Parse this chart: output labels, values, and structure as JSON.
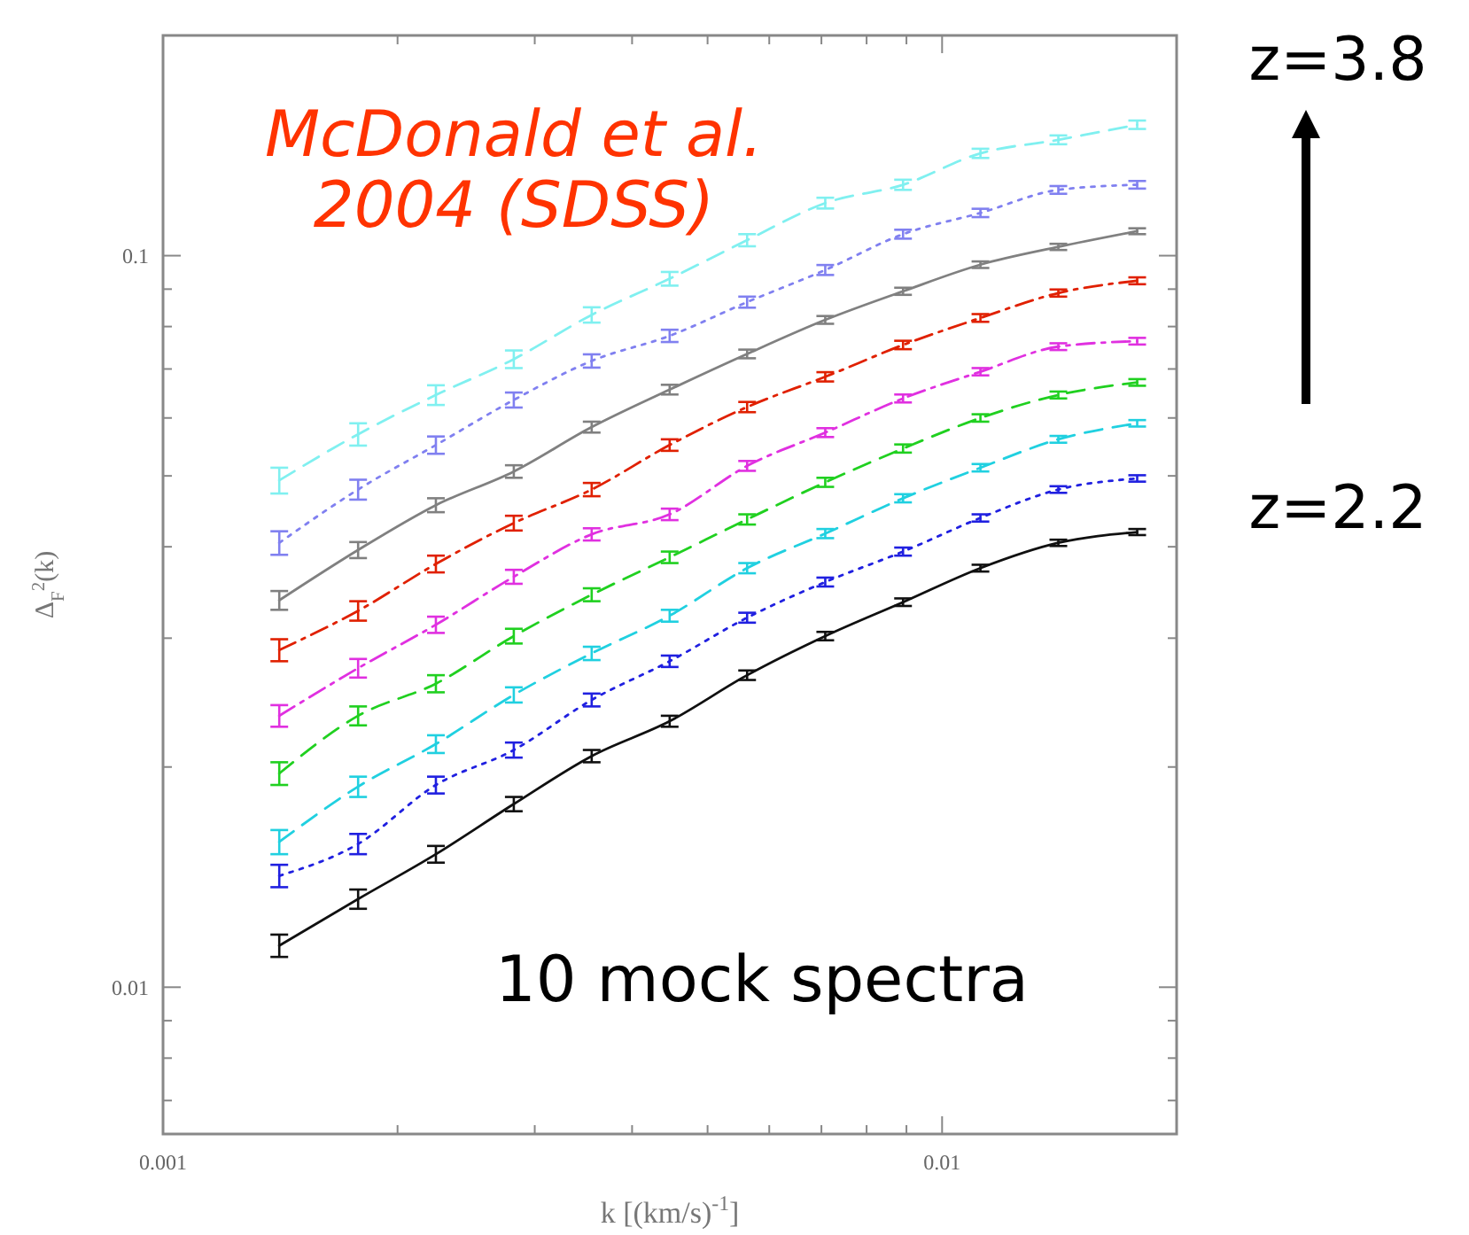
{
  "chart_data": {
    "type": "line",
    "xlabel": "k [(km/s)$^{-1}$]",
    "ylabel": "Δ$_{F}$$^{2}$(k)",
    "log": "xy",
    "grid": false,
    "marker": "none",
    "xlim": [
      0.001,
      0.02
    ],
    "ylim": [
      0.0063,
      0.2
    ],
    "xticks": [
      0.001,
      {
        "value": 0.002,
        "label": null
      },
      {
        "value": 0.003,
        "label": null
      },
      {
        "value": 0.004,
        "label": null
      },
      {
        "value": 0.005,
        "label": null
      },
      {
        "value": 0.006,
        "label": null
      },
      {
        "value": 0.007,
        "label": null
      },
      {
        "value": 0.008,
        "label": null
      },
      {
        "value": 0.009,
        "label": null
      },
      0.01,
      {
        "value": 0.02,
        "label": null
      }
    ],
    "yticks": [
      {
        "value": 0.007,
        "label": null
      },
      {
        "value": 0.008,
        "label": null
      },
      {
        "value": 0.009,
        "label": null
      },
      0.01,
      {
        "value": 0.02,
        "label": null
      },
      {
        "value": 0.03,
        "label": null
      },
      {
        "value": 0.04,
        "label": null
      },
      {
        "value": 0.05,
        "label": null
      },
      {
        "value": 0.06,
        "label": null
      },
      {
        "value": 0.07,
        "label": null
      },
      {
        "value": 0.08,
        "label": null
      },
      {
        "value": 0.09,
        "label": null
      },
      0.1,
      {
        "value": 0.2,
        "label": null
      }
    ],
    "x": [
      0.00141,
      0.00178,
      0.00224,
      0.00282,
      0.00355,
      0.00447,
      0.00562,
      0.00708,
      0.00891,
      0.0112,
      0.0141,
      0.0178
    ],
    "series": [
      {
        "color": "#80f0f0",
        "line_style": "dashed",
        "values": [
          0.0493,
          0.057,
          0.0645,
          0.0722,
          0.083,
          0.093,
          0.105,
          0.118,
          0.125,
          0.138,
          0.144,
          0.151
        ],
        "errors": [
          0.002,
          0.002,
          0.002,
          0.002,
          0.002,
          0.002,
          0.002,
          0.002,
          0.002,
          0.002,
          0.002,
          0.002
        ]
      },
      {
        "color": "#8080f0",
        "line_style": "dotted",
        "values": [
          0.0405,
          0.0479,
          0.0551,
          0.0635,
          0.0718,
          0.0777,
          0.0864,
          0.0956,
          0.107,
          0.1144,
          0.123,
          0.125
        ],
        "errors": [
          0.0015,
          0.0015,
          0.0015,
          0.0015,
          0.0015,
          0.0015,
          0.0015,
          0.0015,
          0.0015,
          0.0015,
          0.0015,
          0.0015
        ]
      },
      {
        "color": "#808080",
        "line_style": "solid",
        "values": [
          0.0338,
          0.0396,
          0.0456,
          0.0507,
          0.0583,
          0.0656,
          0.0734,
          0.0817,
          0.0894,
          0.0972,
          0.1028,
          0.108
        ],
        "errors": [
          0.001,
          0.001,
          0.001,
          0.001,
          0.001,
          0.001,
          0.001,
          0.001,
          0.001,
          0.001,
          0.001,
          0.001
        ]
      },
      {
        "color": "#e02000",
        "line_style": "dashdot",
        "values": [
          0.0289,
          0.0327,
          0.0379,
          0.0431,
          0.0479,
          0.0551,
          0.0621,
          0.0683,
          0.0755,
          0.0822,
          0.0889,
          0.0924
        ],
        "errors": [
          0.001,
          0.001,
          0.001,
          0.001,
          0.001,
          0.001,
          0.001,
          0.001,
          0.001,
          0.001,
          0.001,
          0.001
        ]
      },
      {
        "color": "#e030e0",
        "line_style": "dashdot",
        "values": [
          0.0235,
          0.0273,
          0.0313,
          0.0364,
          0.0416,
          0.0443,
          0.0516,
          0.0573,
          0.0638,
          0.0694,
          0.0751,
          0.0764
        ],
        "errors": [
          0.0008,
          0.0008,
          0.0008,
          0.0008,
          0.0008,
          0.0008,
          0.0008,
          0.0008,
          0.0008,
          0.0008,
          0.0008,
          0.0008
        ]
      },
      {
        "color": "#20d020",
        "line_style": "dashed",
        "values": [
          0.0196,
          0.0235,
          0.026,
          0.0302,
          0.0344,
          0.0387,
          0.0436,
          0.049,
          0.0545,
          0.06,
          0.0645,
          0.0671
        ],
        "errors": [
          0.0007,
          0.0007,
          0.0007,
          0.0007,
          0.0007,
          0.0007,
          0.0007,
          0.0007,
          0.0007,
          0.0007,
          0.0007,
          0.0007
        ]
      },
      {
        "color": "#20d0e0",
        "line_style": "dashed",
        "values": [
          0.0158,
          0.0188,
          0.0215,
          0.0251,
          0.0286,
          0.0322,
          0.0374,
          0.0417,
          0.0466,
          0.0513,
          0.0561,
          0.059
        ],
        "errors": [
          0.0006,
          0.0006,
          0.0006,
          0.0006,
          0.0006,
          0.0006,
          0.0006,
          0.0006,
          0.0006,
          0.0006,
          0.0006,
          0.0006
        ]
      },
      {
        "color": "#2020e0",
        "line_style": "dotted",
        "values": [
          0.0142,
          0.0157,
          0.0189,
          0.0211,
          0.0247,
          0.0279,
          0.032,
          0.0358,
          0.0394,
          0.0438,
          0.0479,
          0.0496
        ],
        "errors": [
          0.0005,
          0.0005,
          0.0005,
          0.0005,
          0.0005,
          0.0005,
          0.0005,
          0.0005,
          0.0005,
          0.0005,
          0.0005,
          0.0005
        ]
      },
      {
        "color": "#101010",
        "line_style": "solid",
        "values": [
          0.0114,
          0.0132,
          0.0152,
          0.0178,
          0.0207,
          0.0231,
          0.0267,
          0.0302,
          0.0336,
          0.0374,
          0.0405,
          0.0419
        ],
        "errors": [
          0.0004,
          0.0004,
          0.0004,
          0.0004,
          0.0004,
          0.0004,
          0.0004,
          0.0004,
          0.0004,
          0.0004,
          0.0004,
          0.0004
        ]
      }
    ],
    "annotations": [
      "McDonald et al.\n2004 (SDSS)",
      "10 mock spectra",
      "z=3.8",
      "z=2.2"
    ]
  }
}
